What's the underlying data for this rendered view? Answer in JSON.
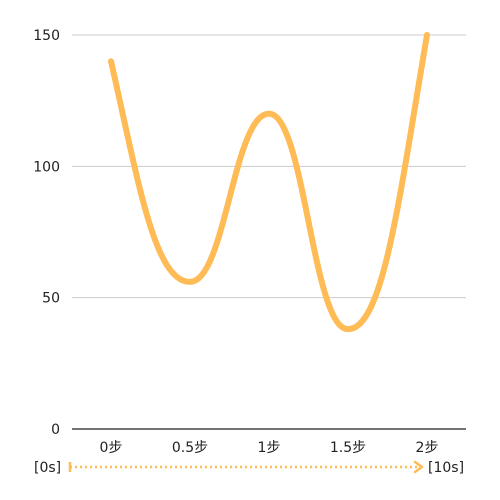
{
  "chart_data": {
    "type": "line",
    "title": "",
    "xlabel": "",
    "ylabel": "",
    "categories": [
      "0步",
      "0.5步",
      "1步",
      "1.5步",
      "2步"
    ],
    "x": [
      0,
      0.25,
      0.5,
      0.75,
      1,
      1.25,
      1.5,
      1.75,
      2
    ],
    "series": [
      {
        "values": [
          140,
          56,
          120,
          38,
          150
        ],
        "x": [
          0,
          0.5,
          1,
          1.5,
          2
        ]
      }
    ],
    "ylim": [
      0,
      150
    ],
    "yticks": [
      0,
      50,
      100,
      150
    ],
    "grid": true,
    "colors": {
      "line": "#FFBB55",
      "grid": "#cccccc",
      "axis": "#222222",
      "time_arrow": "#FFBB55"
    },
    "time_axis": {
      "start_label": "[0s]",
      "end_label": "[10s]"
    }
  }
}
